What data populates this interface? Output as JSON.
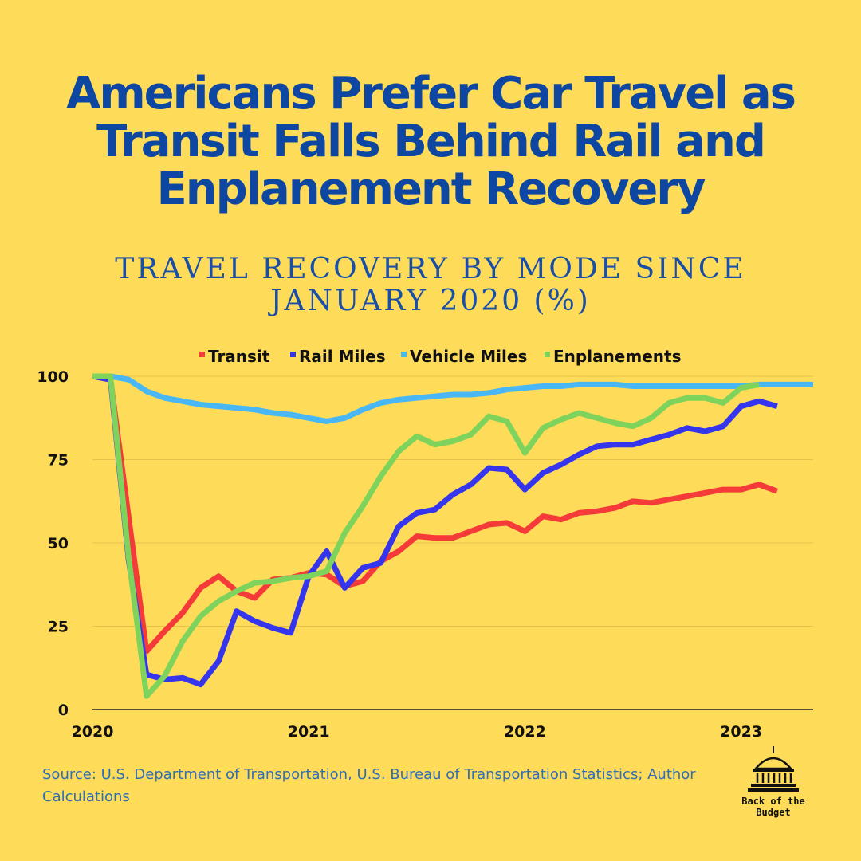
{
  "header": {
    "title": "Americans Prefer Car Travel as Transit Falls Behind Rail and Enplanement Recovery",
    "subtitle": "Travel Recovery by Mode Since January 2020 (%)"
  },
  "footer": {
    "source": "Source: U.S. Department of Transportation, U.S. Bureau of Transportation Statistics; Author Calculations",
    "logo_text": "Back of the Budget"
  },
  "chart_data": {
    "type": "line",
    "title": "Travel Recovery by Mode Since January 2020 (%)",
    "xlabel": "",
    "ylabel": "",
    "ylim": [
      0,
      100
    ],
    "xlim": [
      2020.0,
      2023.3333
    ],
    "x_ticks": [
      {
        "value": 2020,
        "label": "2020"
      },
      {
        "value": 2021,
        "label": "2021"
      },
      {
        "value": 2022,
        "label": "2022"
      },
      {
        "value": 2023,
        "label": "2023"
      }
    ],
    "y_ticks": [
      {
        "value": 0,
        "label": "0"
      },
      {
        "value": 25,
        "label": "25"
      },
      {
        "value": 50,
        "label": "50"
      },
      {
        "value": 75,
        "label": "75"
      },
      {
        "value": 100,
        "label": "100"
      }
    ],
    "grid": "horizontal",
    "legend_position": "top",
    "x_start": "Jan 2020",
    "x_step": "1 month",
    "series": [
      {
        "name": "Transit",
        "color": "#f53a3a",
        "values": [
          100,
          99,
          58,
          17.5,
          23.5,
          29,
          36.5,
          40,
          35.5,
          33.5,
          39,
          39.5,
          41,
          40.5,
          37,
          38.5,
          44.5,
          47.5,
          52,
          51.5,
          51.5,
          53.5,
          55.5,
          56,
          53.5,
          58,
          57,
          59,
          59.5,
          60.5,
          62.5,
          62,
          63,
          64,
          65,
          66,
          66,
          67.5,
          65.5
        ]
      },
      {
        "name": "Rail Miles",
        "color": "#3535ee",
        "values": [
          100,
          99,
          45,
          10.5,
          9,
          9.5,
          7.5,
          14.5,
          29.5,
          26.5,
          24.5,
          23,
          40,
          47.5,
          36.5,
          42.5,
          44,
          55,
          59,
          60,
          64.5,
          67.5,
          72.5,
          72,
          66,
          71,
          73.5,
          76.5,
          79,
          79.5,
          79.5,
          81,
          82.5,
          84.5,
          83.5,
          85,
          91,
          92.5,
          91
        ]
      },
      {
        "name": "Vehicle Miles",
        "color": "#4ab7f5",
        "values": [
          100,
          100,
          99,
          95.5,
          93.5,
          92.5,
          91.5,
          91,
          90.5,
          90,
          89,
          88.5,
          87.5,
          86.5,
          87.5,
          90,
          92,
          93,
          93.5,
          94,
          94.5,
          94.5,
          95,
          96,
          96.5,
          97,
          97,
          97.5,
          97.5,
          97.5,
          97,
          97,
          97,
          97,
          97,
          97,
          97,
          97.5,
          97.5,
          97.5,
          97.5
        ]
      },
      {
        "name": "Enplanements",
        "color": "#7dd35c",
        "values": [
          100,
          100,
          46,
          4,
          10,
          20.5,
          28,
          32.5,
          35.5,
          38,
          38.5,
          39.5,
          40,
          41.5,
          53,
          61,
          70,
          77.5,
          82,
          79.5,
          80.5,
          82.5,
          88,
          86.5,
          77,
          84.5,
          87,
          89,
          87.5,
          86,
          85,
          87.5,
          92,
          93.5,
          93.5,
          92,
          96.5,
          97.5
        ]
      }
    ]
  }
}
